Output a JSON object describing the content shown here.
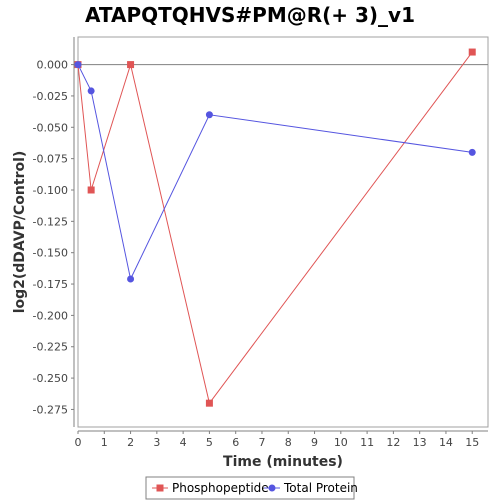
{
  "chart_data": {
    "type": "line",
    "title": "ATAPQTQHVS#PM@R(+ 3)_v1",
    "xlabel": "Time (minutes)",
    "ylabel": "log2(dDAVP/Control)",
    "xlim": [
      0,
      15.6
    ],
    "ylim": [
      -0.289,
      0.022
    ],
    "x_ticks": [
      0,
      1,
      2,
      3,
      4,
      5,
      6,
      7,
      8,
      9,
      10,
      11,
      12,
      13,
      14,
      15
    ],
    "y_ticks": [
      0.0,
      -0.025,
      -0.05,
      -0.075,
      -0.1,
      -0.125,
      -0.15,
      -0.175,
      -0.2,
      -0.225,
      -0.25,
      -0.275
    ],
    "y_tick_labels": [
      "0.000",
      "-0.025",
      "-0.050",
      "-0.075",
      "-0.100",
      "-0.125",
      "-0.150",
      "-0.175",
      "-0.200",
      "-0.225",
      "-0.250",
      "-0.275"
    ],
    "zero_line": true,
    "grid": false,
    "legend_position": "bottom",
    "series": [
      {
        "name": "Phosphopeptide",
        "color": "#e05555",
        "marker": "square",
        "x": [
          0,
          0.5,
          2,
          5,
          15
        ],
        "y": [
          0.0,
          -0.1,
          0.0,
          -0.27,
          0.01
        ]
      },
      {
        "name": "Total Protein",
        "color": "#5555e0",
        "marker": "circle",
        "x": [
          0,
          0.5,
          2,
          5,
          15
        ],
        "y": [
          0.0,
          -0.021,
          -0.171,
          -0.04,
          -0.07
        ]
      }
    ]
  }
}
